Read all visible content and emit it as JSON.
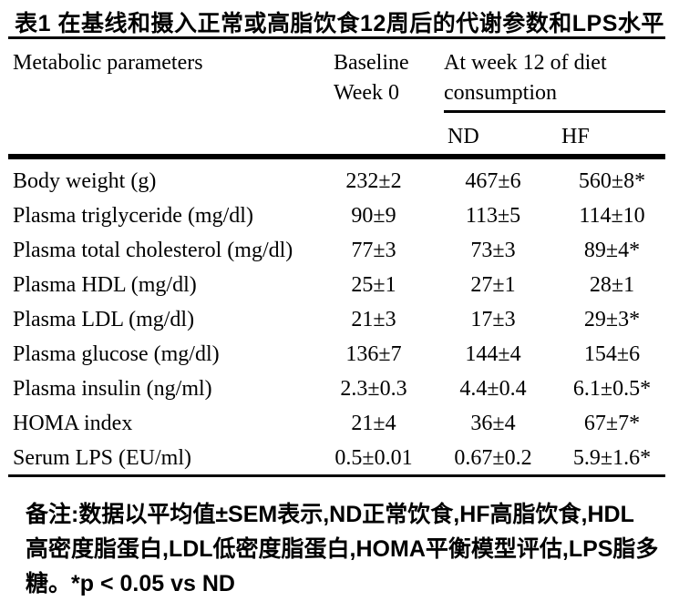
{
  "chart_data": {
    "type": "table",
    "title": "表1 在基线和摄入正常或高脂饮食12周后的代谢参数和LPS水平",
    "header": {
      "parameters": "Metabolic parameters",
      "baseline": [
        "Baseline",
        "Week 0"
      ],
      "week12_group": [
        "At week 12 of diet",
        "consumption"
      ],
      "subcolumns": {
        "nd": "ND",
        "hf": "HF"
      }
    },
    "rows": [
      {
        "parameter": "Body weight (g)",
        "baseline": "232±2",
        "nd": "467±6",
        "hf": "560±8*"
      },
      {
        "parameter": "Plasma triglyceride (mg/dl)",
        "baseline": "90±9",
        "nd": "113±5",
        "hf": "114±10"
      },
      {
        "parameter": "Plasma total cholesterol (mg/dl)",
        "baseline": "77±3",
        "nd": "73±3",
        "hf": "89±4*"
      },
      {
        "parameter": "Plasma HDL (mg/dl)",
        "baseline": "25±1",
        "nd": "27±1",
        "hf": "28±1"
      },
      {
        "parameter": "Plasma LDL (mg/dl)",
        "baseline": "21±3",
        "nd": "17±3",
        "hf": "29±3*"
      },
      {
        "parameter": "Plasma glucose (mg/dl)",
        "baseline": "136±7",
        "nd": "144±4",
        "hf": "154±6"
      },
      {
        "parameter": "Plasma insulin (ng/ml)",
        "baseline": "2.3±0.3",
        "nd": "4.4±0.4",
        "hf": "6.1±0.5*"
      },
      {
        "parameter": "HOMA index",
        "baseline": "21±4",
        "nd": "36±4",
        "hf": "67±7*"
      },
      {
        "parameter": "Serum LPS (EU/ml)",
        "baseline": "0.5±0.01",
        "nd": "0.67±0.2",
        "hf": "5.9±1.6*"
      }
    ],
    "footnote_lines": [
      "备注:数据以平均值±SEM表示,ND正常饮食,HF高脂饮食,HDL",
      "高密度脂蛋白,LDL低密度脂蛋白,HOMA平衡模型评估,LPS脂多",
      "糖。*p < 0.05 vs ND"
    ],
    "colors": {
      "text": "#000000",
      "rules": "#000000",
      "background": "#ffffff"
    },
    "layout": {
      "grid": "off",
      "rules": "horizontal-only",
      "value_alignment": "center"
    }
  }
}
